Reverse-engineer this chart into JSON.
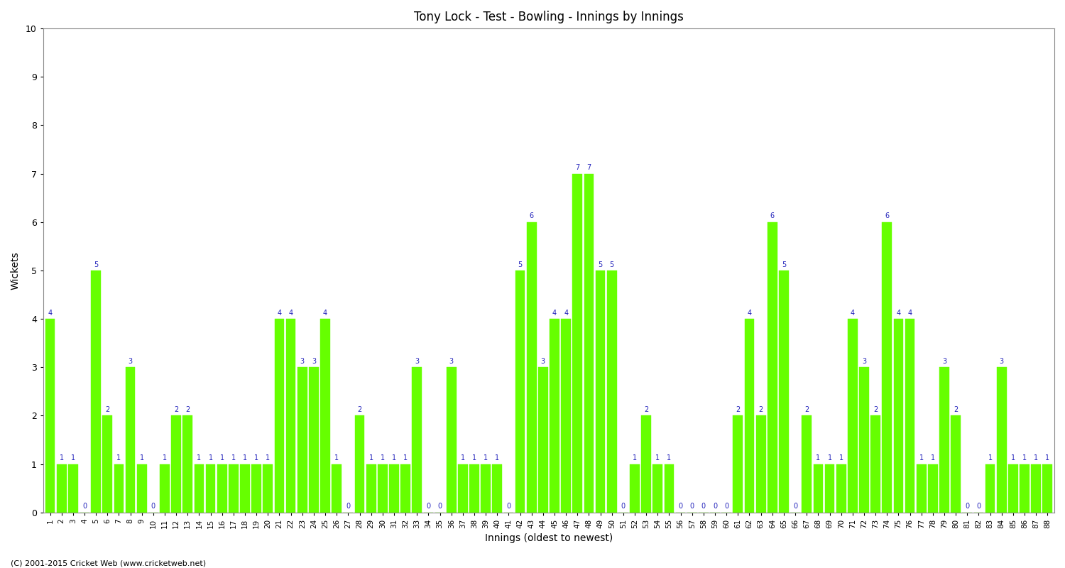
{
  "title": "Tony Lock - Test - Bowling - Innings by Innings",
  "xlabel": "Innings (oldest to newest)",
  "ylabel": "Wickets",
  "ylim_max": 10,
  "bar_color": "#66ff00",
  "label_color": "#2222bb",
  "bg_color": "#ffffff",
  "plot_bg_color": "#ffffff",
  "grid_color": "#cccccc",
  "copyright": "(C) 2001-2015 Cricket Web (www.cricketweb.net)",
  "wkt_data": [
    [
      1,
      4
    ],
    [
      2,
      1
    ],
    [
      3,
      1
    ],
    [
      4,
      0
    ],
    [
      5,
      5
    ],
    [
      6,
      2
    ],
    [
      7,
      1
    ],
    [
      8,
      3
    ],
    [
      9,
      1
    ],
    [
      10,
      0
    ],
    [
      11,
      1
    ],
    [
      12,
      2
    ],
    [
      13,
      2
    ],
    [
      14,
      1
    ],
    [
      15,
      1
    ],
    [
      16,
      1
    ],
    [
      17,
      1
    ],
    [
      18,
      1
    ],
    [
      19,
      1
    ],
    [
      20,
      1
    ],
    [
      21,
      4
    ],
    [
      22,
      4
    ],
    [
      23,
      3
    ],
    [
      24,
      3
    ],
    [
      25,
      4
    ],
    [
      26,
      1
    ],
    [
      27,
      0
    ],
    [
      28,
      2
    ],
    [
      29,
      1
    ],
    [
      30,
      1
    ],
    [
      31,
      1
    ],
    [
      32,
      1
    ],
    [
      33,
      3
    ],
    [
      34,
      0
    ],
    [
      35,
      0
    ],
    [
      36,
      3
    ],
    [
      37,
      1
    ],
    [
      38,
      1
    ],
    [
      39,
      1
    ],
    [
      40,
      1
    ],
    [
      41,
      0
    ],
    [
      42,
      5
    ],
    [
      43,
      6
    ],
    [
      44,
      3
    ],
    [
      45,
      4
    ],
    [
      46,
      4
    ],
    [
      47,
      7
    ],
    [
      48,
      7
    ],
    [
      49,
      5
    ],
    [
      50,
      5
    ],
    [
      51,
      0
    ],
    [
      52,
      1
    ],
    [
      53,
      2
    ],
    [
      54,
      1
    ],
    [
      55,
      1
    ],
    [
      56,
      0
    ],
    [
      57,
      0
    ],
    [
      58,
      0
    ],
    [
      59,
      0
    ],
    [
      60,
      0
    ],
    [
      61,
      2
    ],
    [
      62,
      4
    ],
    [
      63,
      2
    ],
    [
      64,
      6
    ],
    [
      65,
      5
    ],
    [
      66,
      0
    ],
    [
      67,
      2
    ],
    [
      68,
      1
    ],
    [
      69,
      1
    ],
    [
      70,
      1
    ],
    [
      71,
      4
    ],
    [
      72,
      3
    ],
    [
      73,
      2
    ],
    [
      74,
      6
    ],
    [
      75,
      4
    ],
    [
      76,
      4
    ],
    [
      77,
      1
    ],
    [
      78,
      1
    ],
    [
      79,
      3
    ],
    [
      80,
      2
    ],
    [
      81,
      0
    ],
    [
      82,
      0
    ],
    [
      83,
      1
    ],
    [
      84,
      3
    ],
    [
      85,
      1
    ],
    [
      86,
      1
    ],
    [
      87,
      1
    ],
    [
      88,
      1
    ]
  ]
}
